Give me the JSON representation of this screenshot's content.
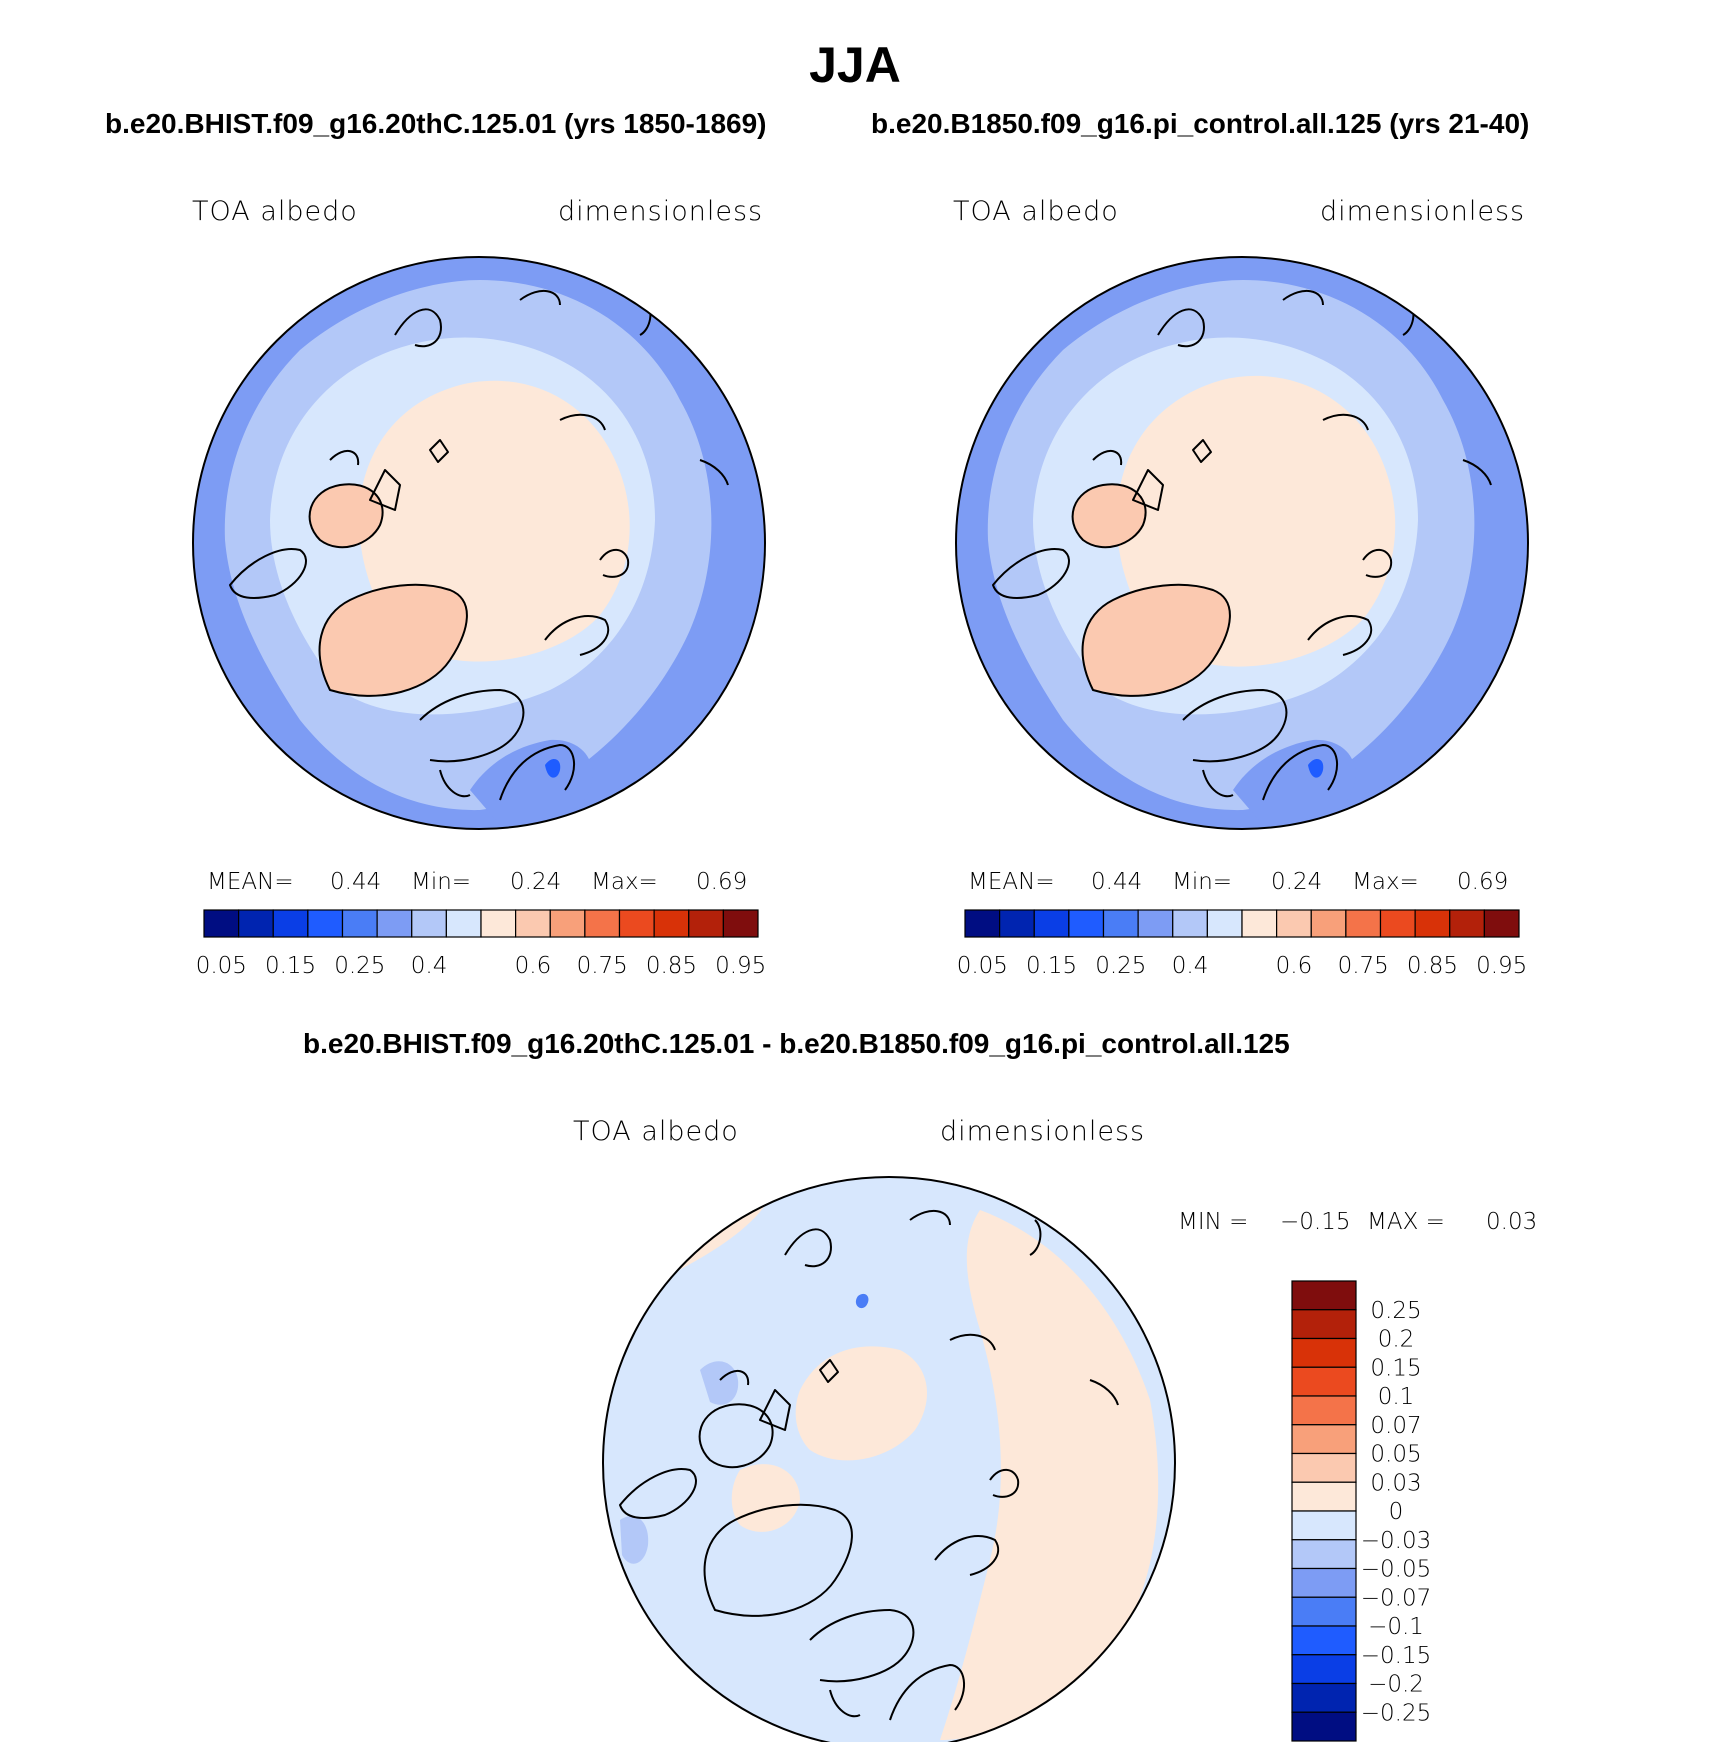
{
  "header": {
    "title": "JJA",
    "subtitle_left": "b.e20.BHIST.f09_g16.20thC.125.01 (yrs 1850-1869)",
    "subtitle_right": "b.e20.B1850.f09_g16.pi_control.all.125 (yrs 21-40)",
    "diff_title": "b.e20.BHIST.f09_g16.20thC.125.01 - b.e20.B1850.f09_g16.pi_control.all.125"
  },
  "colors": {
    "abs_scale": [
      "#000d82",
      "#0024b0",
      "#0a3ee6",
      "#1f5cff",
      "#4a7df6",
      "#7d9cf4",
      "#b3c8f8",
      "#d7e7fd",
      "#fde8d9",
      "#fbc9b0",
      "#f8a07a",
      "#f47349",
      "#eb4a1f",
      "#d83208",
      "#b3210a",
      "#7f0d0d"
    ],
    "diff_scale": [
      "#7f0d0d",
      "#b3210a",
      "#d83208",
      "#eb4a1f",
      "#f47349",
      "#f8a07a",
      "#fbc9b0",
      "#fde8d9",
      "#d7e7fd",
      "#b3c8f8",
      "#7d9cf4",
      "#4a7df6",
      "#1f5cff",
      "#0a3ee6",
      "#0024b0",
      "#000d82"
    ],
    "land_warm": "#fbc9b0"
  },
  "chart_data": [
    {
      "type": "heatmap",
      "panel": "left",
      "projection": "north polar stereographic",
      "variable": "TOA albedo",
      "units": "dimensionless",
      "stats": {
        "mean_label": "MEAN=",
        "mean": "0.44",
        "min_label": "Min=",
        "min": "0.24",
        "max_label": "Max=",
        "max": "0.69"
      },
      "colorbar": {
        "orientation": "horizontal",
        "levels": [
          "0.05",
          "0.15",
          "0.25",
          "0.4",
          "0.6",
          "0.75",
          "0.85",
          "0.95"
        ]
      }
    },
    {
      "type": "heatmap",
      "panel": "right",
      "projection": "north polar stereographic",
      "variable": "TOA albedo",
      "units": "dimensionless",
      "stats": {
        "mean_label": "MEAN=",
        "mean": "0.44",
        "min_label": "Min=",
        "min": "0.24",
        "max_label": "Max=",
        "max": "0.69"
      },
      "colorbar": {
        "orientation": "horizontal",
        "levels": [
          "0.05",
          "0.15",
          "0.25",
          "0.4",
          "0.6",
          "0.75",
          "0.85",
          "0.95"
        ]
      }
    },
    {
      "type": "heatmap",
      "panel": "difference",
      "projection": "north polar stereographic",
      "variable": "TOA albedo",
      "units": "dimensionless",
      "stats": {
        "min_label": "MIN =",
        "min": "−0.15",
        "max_label": "MAX =",
        "max": "0.03"
      },
      "colorbar": {
        "orientation": "vertical",
        "levels": [
          "0.25",
          "0.2",
          "0.15",
          "0.1",
          "0.07",
          "0.05",
          "0.03",
          "0",
          "−0.03",
          "−0.05",
          "−0.07",
          "−0.1",
          "−0.15",
          "−0.2",
          "−0.25"
        ]
      }
    }
  ]
}
